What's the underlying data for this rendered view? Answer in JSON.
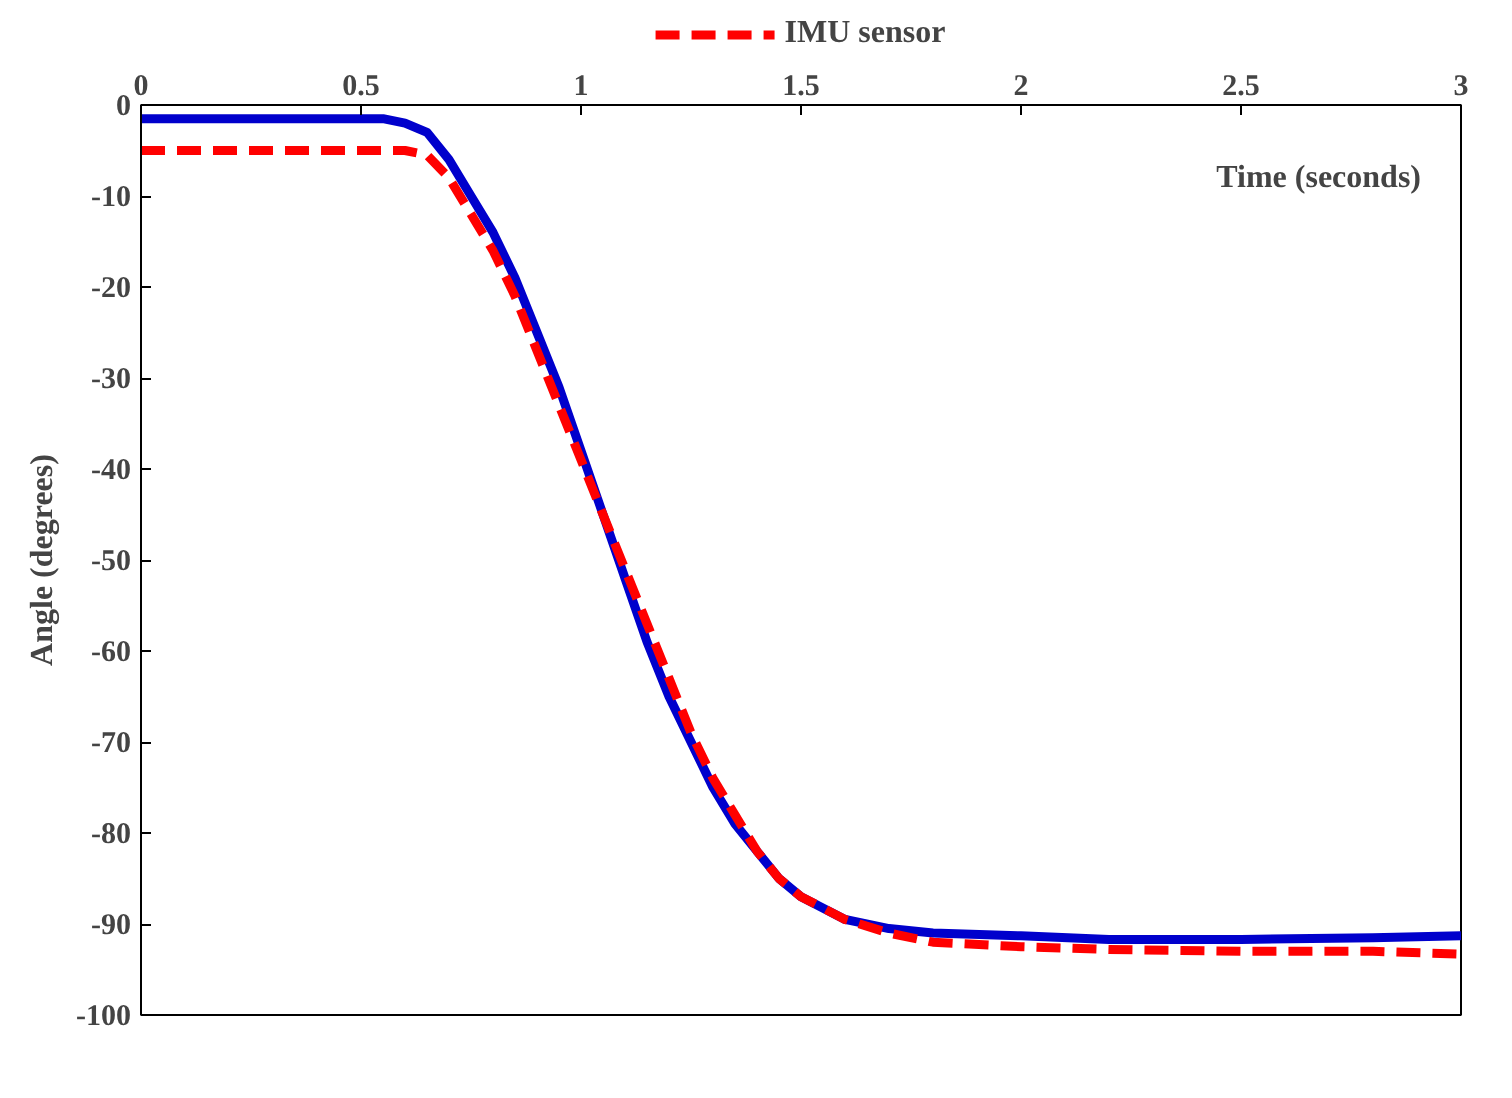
{
  "chart_data": {
    "type": "line",
    "xlabel": "Time (seconds)",
    "ylabel": "Angle (degrees)",
    "xlim": [
      0,
      3
    ],
    "xticks": [
      0,
      0.5,
      1,
      1.5,
      2,
      2.5,
      3
    ],
    "ylim": [
      -100,
      0
    ],
    "yticks": [
      0,
      -10,
      -20,
      -30,
      -40,
      -50,
      -60,
      -70,
      -80,
      -90,
      -100
    ],
    "grid": false,
    "legend": "top",
    "marker": "none",
    "series": [
      {
        "color": "#0000cc",
        "line_style": "solid",
        "x": [
          0,
          0.3,
          0.55,
          0.6,
          0.65,
          0.7,
          0.75,
          0.8,
          0.85,
          0.9,
          0.95,
          1.0,
          1.05,
          1.1,
          1.15,
          1.2,
          1.25,
          1.3,
          1.35,
          1.4,
          1.45,
          1.5,
          1.6,
          1.7,
          1.8,
          2.0,
          2.2,
          2.5,
          2.8,
          3.0
        ],
        "values": [
          -1.5,
          -1.5,
          -1.5,
          -2,
          -3,
          -6,
          -10,
          -14,
          -19,
          -25,
          -31,
          -38,
          -45,
          -52,
          -59,
          -65,
          -70,
          -75,
          -79,
          -82,
          -85,
          -87,
          -89.5,
          -90.5,
          -91,
          -91.3,
          -91.7,
          -91.7,
          -91.5,
          -91.3
        ]
      },
      {
        "name": "IMU sensor",
        "color": "#ff0000",
        "line_style": "dashed",
        "x": [
          0,
          0.3,
          0.6,
          0.65,
          0.7,
          0.75,
          0.8,
          0.85,
          0.9,
          0.95,
          1.0,
          1.05,
          1.1,
          1.15,
          1.2,
          1.25,
          1.3,
          1.35,
          1.4,
          1.45,
          1.5,
          1.6,
          1.7,
          1.8,
          2.0,
          2.2,
          2.5,
          2.8,
          3.0
        ],
        "values": [
          -5,
          -5,
          -5,
          -5.5,
          -8,
          -12,
          -16,
          -21,
          -27,
          -33,
          -39,
          -45,
          -51,
          -57,
          -63,
          -69,
          -74,
          -78,
          -82,
          -85,
          -87,
          -89.5,
          -91,
          -92,
          -92.5,
          -92.8,
          -93,
          -93,
          -93.3
        ]
      }
    ]
  }
}
